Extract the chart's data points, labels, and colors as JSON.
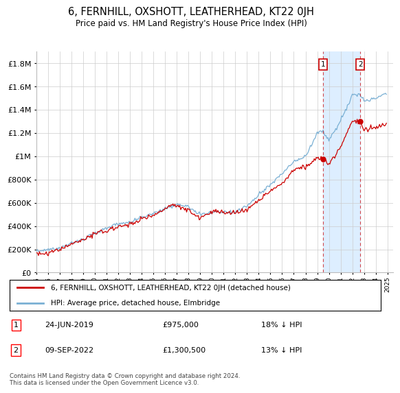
{
  "title": "6, FERNHILL, OXSHOTT, LEATHERHEAD, KT22 0JH",
  "subtitle": "Price paid vs. HM Land Registry's House Price Index (HPI)",
  "ylabel_ticks": [
    "£0",
    "£200K",
    "£400K",
    "£600K",
    "£800K",
    "£1M",
    "£1.2M",
    "£1.4M",
    "£1.6M",
    "£1.8M"
  ],
  "ytick_values": [
    0,
    200000,
    400000,
    600000,
    800000,
    1000000,
    1200000,
    1400000,
    1600000,
    1800000
  ],
  "ylim": [
    0,
    1900000
  ],
  "xlim_start": 1995.0,
  "xlim_end": 2025.5,
  "legend1_label": "6, FERNHILL, OXSHOTT, LEATHERHEAD, KT22 0JH (detached house)",
  "legend2_label": "HPI: Average price, detached house, Elmbridge",
  "sale1_date": "24-JUN-2019",
  "sale1_price": "£975,000",
  "sale1_pct": "18% ↓ HPI",
  "sale2_date": "09-SEP-2022",
  "sale2_price": "£1,300,500",
  "sale2_pct": "13% ↓ HPI",
  "footnote": "Contains HM Land Registry data © Crown copyright and database right 2024.\nThis data is licensed under the Open Government Licence v3.0.",
  "red_color": "#cc0000",
  "blue_color": "#7ab0d4",
  "shade_color": "#ddeeff",
  "background_color": "#ffffff",
  "grid_color": "#cccccc",
  "sale1_x": 2019.48,
  "sale2_x": 2022.69
}
